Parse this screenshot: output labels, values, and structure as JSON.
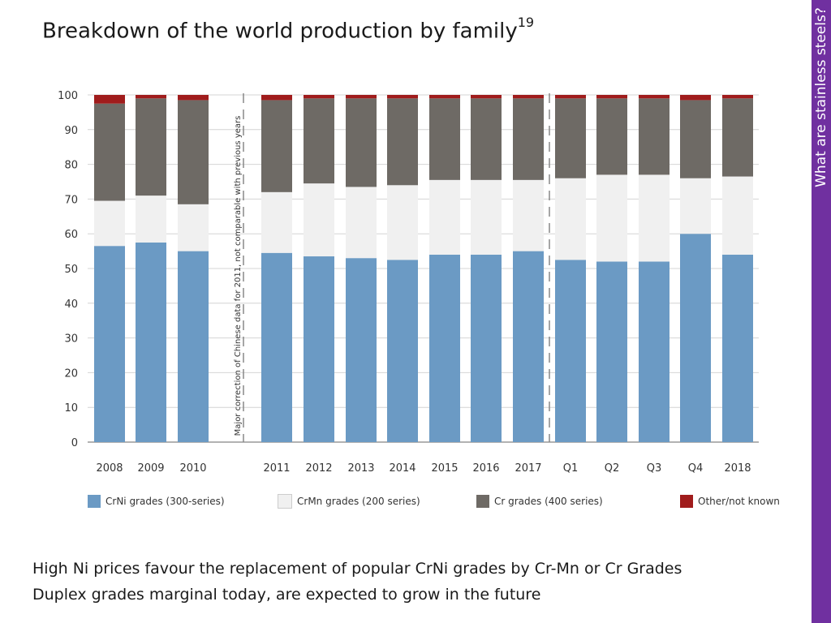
{
  "slide": {
    "title": "Breakdown of the world production by family",
    "title_superscript": "19",
    "side_label": "What are stainless steels?",
    "side_color": "#7030a0",
    "notes": [
      "High Ni prices favour the  replacement of popular CrNi grades by Cr-Mn or Cr Grades",
      "Duplex grades marginal today, are expected to grow in the future"
    ]
  },
  "chart_data": {
    "type": "bar",
    "stacked": true,
    "categories": [
      "2008",
      "2009",
      "2010",
      "2011",
      "2012",
      "2013",
      "2014",
      "2015",
      "2016",
      "2017",
      "Q1",
      "Q2",
      "Q3",
      "Q4",
      "2018"
    ],
    "series": [
      {
        "name": "CrNi grades (300-series)",
        "color": "#6b9ac4",
        "values": [
          56.5,
          57.5,
          55,
          54.5,
          53.5,
          53,
          52.5,
          54,
          54,
          55,
          52.5,
          52,
          52,
          60,
          54
        ]
      },
      {
        "name": "CrMn grades (200 series)",
        "color": "#f0f0f0",
        "values": [
          13,
          13.5,
          13.5,
          17.5,
          21,
          20.5,
          21.5,
          21.5,
          21.5,
          20.5,
          23.5,
          25,
          25,
          16,
          22.5
        ]
      },
      {
        "name": "Cr grades (400 series)",
        "color": "#6e6a65",
        "values": [
          28,
          28,
          30,
          26.5,
          24.5,
          25.5,
          25,
          23.5,
          23.5,
          23.5,
          23,
          22,
          22,
          22.5,
          22.5
        ]
      },
      {
        "name": "Other/not known",
        "color": "#a01c1c",
        "values": [
          2.5,
          1,
          1.5,
          1.5,
          1,
          1,
          1,
          1,
          1,
          1,
          1,
          1,
          1,
          1.5,
          1
        ]
      }
    ],
    "ylim": [
      0,
      100
    ],
    "yticks": [
      0,
      10,
      20,
      30,
      40,
      50,
      60,
      70,
      80,
      90,
      100
    ],
    "grid": true,
    "legend": "bottom",
    "annotation": "Major correction of Chinese data for 2011, not comparable with previous years"
  }
}
